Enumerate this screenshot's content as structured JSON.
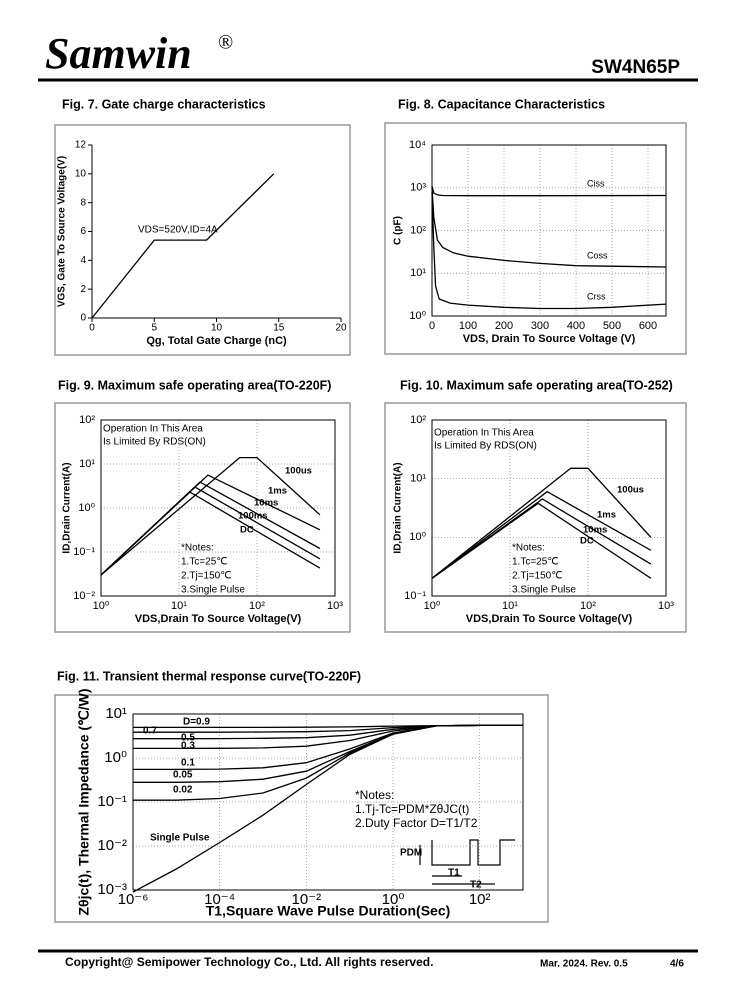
{
  "header": {
    "brand": "Samwin",
    "mark": "®",
    "part": "SW4N65P"
  },
  "footer": {
    "copyright": "Copyright@ Semipower Technology Co., Ltd. All rights reserved.",
    "revision": "Mar. 2024. Rev. 0.5",
    "page": "4/6"
  },
  "chart_data": [
    {
      "type": "line",
      "title": "Fig. 7. Gate charge characteristics",
      "xlabel": "Qg, Total Gate Charge (nC)",
      "ylabel": "VGS, Gate To Source Voltage(V)",
      "xscale": "linear",
      "yscale": "linear",
      "grid": false,
      "xlim": [
        0,
        20
      ],
      "ylim": [
        0,
        12
      ],
      "xticks": [
        0,
        5,
        10,
        15,
        20
      ],
      "yticks": [
        0,
        2,
        4,
        6,
        8,
        10,
        12
      ],
      "annotations": [
        "VDS=520V,ID=4A"
      ],
      "series": [
        {
          "color": "#000000",
          "x": [
            0,
            5,
            9.2,
            14.6
          ],
          "values": [
            0,
            5.4,
            5.4,
            10
          ]
        }
      ]
    },
    {
      "type": "line",
      "title": "Fig. 8. Capacitance Characteristics",
      "xlabel": "VDS, Drain To Source Voltage (V)",
      "ylabel": "C (pF)",
      "xscale": "linear",
      "yscale": "log",
      "grid": true,
      "xlim": [
        0,
        650
      ],
      "ylim": [
        1,
        10000
      ],
      "xticks": [
        0,
        100,
        200,
        300,
        400,
        500,
        600
      ],
      "yticks": [
        {
          "value": 1,
          "label": "10⁰"
        },
        {
          "value": 10,
          "label": "10¹"
        },
        {
          "value": 100,
          "label": "10²"
        },
        {
          "value": 1000,
          "label": "10³"
        },
        {
          "value": 10000,
          "label": "10⁴"
        }
      ],
      "annotations": [],
      "series": [
        {
          "name": "Ciss",
          "color": "#000000",
          "x": [
            0,
            5,
            15,
            30,
            100,
            300,
            650
          ],
          "values": [
            1100,
            750,
            680,
            660,
            650,
            650,
            660
          ]
        },
        {
          "name": "Coss",
          "color": "#000000",
          "x": [
            0,
            5,
            15,
            30,
            60,
            100,
            200,
            300,
            400,
            650
          ],
          "values": [
            1000,
            200,
            60,
            40,
            30,
            25,
            20,
            17,
            15,
            14
          ]
        },
        {
          "name": "Crss",
          "color": "#000000",
          "x": [
            0,
            5,
            10,
            20,
            50,
            100,
            200,
            300,
            400,
            500,
            650
          ],
          "values": [
            800,
            40,
            5,
            2.5,
            2,
            1.8,
            1.6,
            1.5,
            1.5,
            1.6,
            1.9
          ]
        }
      ]
    },
    {
      "type": "line",
      "title": "Fig. 9. Maximum safe operating area(TO-220F)",
      "xlabel": "VDS,Drain To Source Voltage(V)",
      "ylabel": "ID,Drain Current(A)",
      "xscale": "log",
      "yscale": "log",
      "grid": true,
      "xlim": [
        1,
        1000
      ],
      "ylim": [
        0.01,
        100
      ],
      "xticks": [
        {
          "value": 1,
          "label": "10⁰"
        },
        {
          "value": 10,
          "label": "10¹"
        },
        {
          "value": 100,
          "label": "10²"
        },
        {
          "value": 1000,
          "label": "10³"
        }
      ],
      "yticks": [
        {
          "value": 0.01,
          "label": "10⁻²"
        },
        {
          "value": 0.1,
          "label": "10⁻¹"
        },
        {
          "value": 1,
          "label": "10⁰"
        },
        {
          "value": 10,
          "label": "10¹"
        },
        {
          "value": 100,
          "label": "10²"
        }
      ],
      "annotations": [
        "Operation In This Area",
        "Is Limited By RDS(ON)",
        "*Notes:",
        "1.Tc=25℃",
        "2.Tj=150℃",
        "3.Single Pulse"
      ],
      "series": [
        {
          "name": "100us",
          "color": "#000000",
          "x": [
            1,
            60,
            100,
            640
          ],
          "values": [
            0.03,
            14,
            14,
            0.7
          ]
        },
        {
          "name": "1ms",
          "color": "#000000",
          "x": [
            1,
            23.5,
            640
          ],
          "values": [
            0.03,
            5.6,
            0.32
          ]
        },
        {
          "name": "10ms",
          "color": "#000000",
          "x": [
            1,
            18.6,
            640
          ],
          "values": [
            0.03,
            3.9,
            0.12
          ]
        },
        {
          "name": "100ms",
          "color": "#000000",
          "x": [
            1,
            16,
            640
          ],
          "values": [
            0.03,
            3,
            0.07
          ]
        },
        {
          "name": "DC",
          "color": "#000000",
          "x": [
            1,
            13.8,
            640
          ],
          "values": [
            0.03,
            2.3,
            0.043
          ]
        }
      ]
    },
    {
      "type": "line",
      "title": "Fig. 10. Maximum safe operating area(TO-252)",
      "xlabel": "VDS,Drain To Source Voltage(V)",
      "ylabel": "ID,Drain Current(A)",
      "xscale": "log",
      "yscale": "log",
      "grid": true,
      "xlim": [
        1,
        1000
      ],
      "ylim": [
        0.1,
        100
      ],
      "xticks": [
        {
          "value": 1,
          "label": "10⁰"
        },
        {
          "value": 10,
          "label": "10¹"
        },
        {
          "value": 100,
          "label": "10²"
        },
        {
          "value": 1000,
          "label": "10³"
        }
      ],
      "yticks": [
        {
          "value": 0.1,
          "label": "10⁻¹"
        },
        {
          "value": 1,
          "label": "10⁰"
        },
        {
          "value": 10,
          "label": "10¹"
        },
        {
          "value": 100,
          "label": "10²"
        }
      ],
      "annotations": [
        "Operation In This Area",
        "Is Limited By RDS(ON)",
        "*Notes:",
        "1.Tc=25℃",
        "2.Tj=150℃",
        "3.Single Pulse"
      ],
      "series": [
        {
          "name": "100us",
          "color": "#000000",
          "x": [
            1,
            60,
            100,
            640
          ],
          "values": [
            0.2,
            15,
            15,
            1
          ]
        },
        {
          "name": "1ms",
          "color": "#000000",
          "x": [
            1,
            30,
            640
          ],
          "values": [
            0.2,
            6,
            0.6
          ]
        },
        {
          "name": "10ms",
          "color": "#000000",
          "x": [
            1,
            26,
            640
          ],
          "values": [
            0.2,
            4.5,
            0.35
          ]
        },
        {
          "name": "DC",
          "color": "#000000",
          "x": [
            1,
            23,
            640
          ],
          "values": [
            0.2,
            3.8,
            0.2
          ]
        }
      ]
    },
    {
      "type": "line",
      "title": "Fig. 11. Transient thermal response curve(TO-220F)",
      "xlabel": "T1,Square Wave Pulse Duration(Sec)",
      "ylabel": "Zθjc(t), Thermal Impedance (℃/W)",
      "xscale": "log",
      "yscale": "log",
      "grid": true,
      "xlim": [
        1e-06,
        1000
      ],
      "ylim": [
        0.001,
        10
      ],
      "xticks": [
        {
          "value": 1e-06,
          "label": "10⁻⁶"
        },
        {
          "value": 0.0001,
          "label": "10⁻⁴"
        },
        {
          "value": 0.01,
          "label": "10⁻²"
        },
        {
          "value": 1,
          "label": "10⁰"
        },
        {
          "value": 100,
          "label": "10²"
        }
      ],
      "yticks": [
        {
          "value": 0.001,
          "label": "10⁻³"
        },
        {
          "value": 0.01,
          "label": "10⁻²"
        },
        {
          "value": 0.1,
          "label": "10⁻¹"
        },
        {
          "value": 1,
          "label": "10⁰"
        },
        {
          "value": 10,
          "label": "10¹"
        }
      ],
      "annotations": [
        "*Notes:",
        "1.Tj-Tc=PDM*ZθJC(t)",
        "2.Duty Factor D=T1/T2",
        "PDM",
        "T1",
        "T2"
      ],
      "series": [
        {
          "name": "D=0.9",
          "color": "#000000",
          "x": [
            1e-06,
            1e-05,
            0.0001,
            0.001,
            0.01,
            0.1,
            1,
            10,
            100,
            1000
          ],
          "values": [
            4.95,
            4.95,
            4.95,
            4.96,
            5.0,
            5.1,
            5.3,
            5.45,
            5.5,
            5.5
          ]
        },
        {
          "name": "0.7",
          "color": "#000000",
          "x": [
            1e-06,
            1e-05,
            0.0001,
            0.001,
            0.01,
            0.1,
            1,
            10,
            100,
            1000
          ],
          "values": [
            3.85,
            3.85,
            3.86,
            3.9,
            3.95,
            4.2,
            4.9,
            5.4,
            5.5,
            5.5
          ]
        },
        {
          "name": "0.5",
          "color": "#000000",
          "x": [
            1e-06,
            1e-05,
            0.0001,
            0.001,
            0.01,
            0.1,
            1,
            10,
            100,
            1000
          ],
          "values": [
            2.75,
            2.75,
            2.76,
            2.8,
            2.9,
            3.3,
            4.5,
            5.4,
            5.5,
            5.5
          ]
        },
        {
          "name": "0.3",
          "color": "#000000",
          "x": [
            1e-06,
            1e-05,
            0.0001,
            0.001,
            0.01,
            0.1,
            1,
            10,
            100,
            1000
          ],
          "values": [
            1.65,
            1.65,
            1.66,
            1.7,
            1.85,
            2.5,
            4.1,
            5.4,
            5.5,
            5.5
          ]
        },
        {
          "name": "0.1",
          "color": "#000000",
          "x": [
            1e-06,
            1e-05,
            0.0001,
            0.001,
            0.01,
            0.1,
            1,
            10,
            100,
            1000
          ],
          "values": [
            0.55,
            0.55,
            0.56,
            0.6,
            0.78,
            1.6,
            3.7,
            5.4,
            5.5,
            5.5
          ]
        },
        {
          "name": "0.05",
          "color": "#000000",
          "x": [
            1e-06,
            1e-05,
            0.0001,
            0.001,
            0.01,
            0.1,
            1,
            10,
            100,
            1000
          ],
          "values": [
            0.28,
            0.28,
            0.29,
            0.33,
            0.5,
            1.4,
            3.6,
            5.4,
            5.5,
            5.5
          ]
        },
        {
          "name": "0.02",
          "color": "#000000",
          "x": [
            1e-06,
            1e-05,
            0.0001,
            0.001,
            0.01,
            0.1,
            1,
            10,
            100,
            1000
          ],
          "values": [
            0.11,
            0.11,
            0.12,
            0.16,
            0.35,
            1.3,
            3.5,
            5.4,
            5.5,
            5.5
          ]
        },
        {
          "name": "Single Pulse",
          "color": "#000000",
          "x": [
            1e-06,
            1e-05,
            0.0001,
            0.001,
            0.01,
            0.1,
            1,
            10,
            100,
            1000
          ],
          "values": [
            0.0009,
            0.003,
            0.012,
            0.05,
            0.25,
            1.2,
            3.5,
            5.4,
            5.5,
            5.5
          ]
        }
      ]
    }
  ]
}
